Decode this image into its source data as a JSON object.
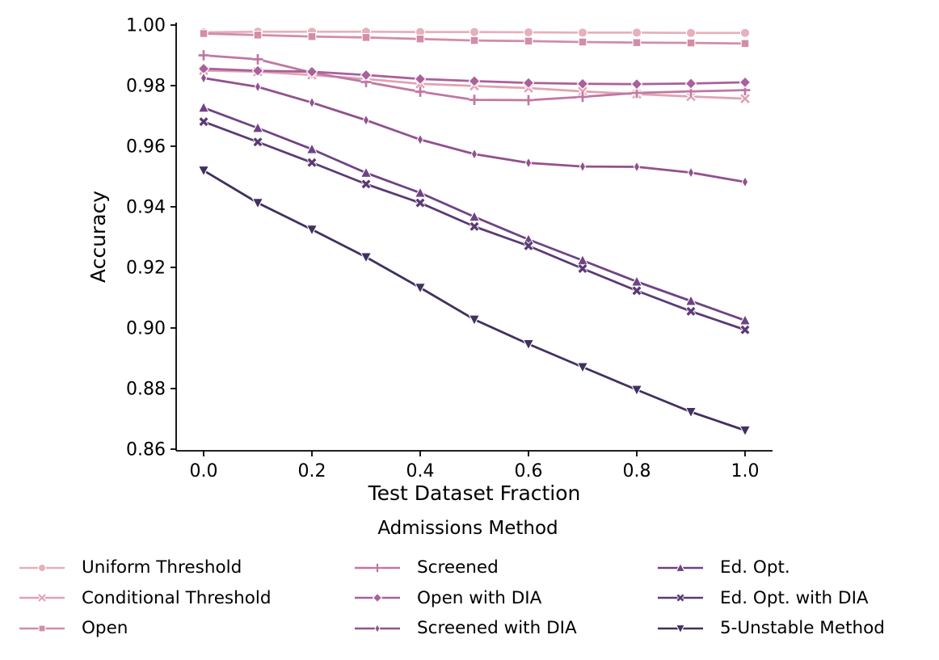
{
  "figure": {
    "background": "#ffffff",
    "axis_color": "#000000"
  },
  "chart_data": {
    "type": "line",
    "title": "",
    "xlabel": "Test Dataset Fraction",
    "ylabel": "Accuracy",
    "legend_title": "Admissions Method",
    "grid": false,
    "legend_position": "below-chart, 3 columns",
    "xlim": [
      -0.05,
      1.05
    ],
    "ylim": [
      0.8595,
      1.0008
    ],
    "x": [
      0.0,
      0.1,
      0.2,
      0.3,
      0.4,
      0.5,
      0.6,
      0.7,
      0.8,
      0.9,
      1.0
    ],
    "xticks": [
      0.0,
      0.2,
      0.4,
      0.6,
      0.8,
      1.0
    ],
    "xtick_labels": [
      "0.0",
      "0.2",
      "0.4",
      "0.6",
      "0.8",
      "1.0"
    ],
    "yticks": [
      0.86,
      0.88,
      0.9,
      0.92,
      0.94,
      0.96,
      0.98,
      1.0
    ],
    "ytick_labels": [
      "0.86",
      "0.88",
      "0.90",
      "0.92",
      "0.94",
      "0.96",
      "0.98",
      "1.00"
    ],
    "series": [
      {
        "name": "Uniform Threshold",
        "marker": "circle",
        "color": "#e5b1bb",
        "values": [
          0.9976,
          0.9978,
          0.9978,
          0.9978,
          0.9977,
          0.9977,
          0.9976,
          0.9975,
          0.9975,
          0.9974,
          0.9974
        ]
      },
      {
        "name": "Conditional Threshold",
        "marker": "x",
        "color": "#dfa3b2",
        "values": [
          0.985,
          0.9846,
          0.9835,
          0.9822,
          0.9806,
          0.9799,
          0.9792,
          0.9781,
          0.9772,
          0.9764,
          0.9757
        ]
      },
      {
        "name": "Open",
        "marker": "square",
        "color": "#d28da7",
        "values": [
          0.9972,
          0.9967,
          0.9962,
          0.9959,
          0.9954,
          0.9949,
          0.9947,
          0.9944,
          0.9942,
          0.9941,
          0.9939
        ]
      },
      {
        "name": "Screened",
        "marker": "plus",
        "color": "#c077a2",
        "values": [
          0.99,
          0.9887,
          0.9843,
          0.9812,
          0.978,
          0.9753,
          0.9752,
          0.9763,
          0.9776,
          0.9781,
          0.9785
        ]
      },
      {
        "name": "Open with DIA",
        "marker": "diamond",
        "color": "#a9609b",
        "values": [
          0.9856,
          0.9849,
          0.9846,
          0.9835,
          0.9822,
          0.9815,
          0.9809,
          0.9806,
          0.9805,
          0.9807,
          0.9811
        ]
      },
      {
        "name": "Screened with DIA",
        "marker": "thin-diamond",
        "color": "#92518f",
        "values": [
          0.9825,
          0.9796,
          0.9744,
          0.9686,
          0.9622,
          0.9574,
          0.9545,
          0.9533,
          0.9532,
          0.9513,
          0.9482
        ]
      },
      {
        "name": "Ed. Opt.",
        "marker": "triangle-up",
        "color": "#6f4383",
        "values": [
          0.9727,
          0.966,
          0.959,
          0.9512,
          0.9446,
          0.9367,
          0.9292,
          0.9223,
          0.9153,
          0.9089,
          0.9025
        ]
      },
      {
        "name": "Ed. Opt. with DIA",
        "marker": "x-filled",
        "color": "#5a3a74",
        "values": [
          0.9681,
          0.9614,
          0.9546,
          0.9475,
          0.9413,
          0.9335,
          0.9271,
          0.9196,
          0.9123,
          0.9055,
          0.8994
        ]
      },
      {
        "name": "5-Unstable Method",
        "marker": "triangle-down",
        "color": "#413060",
        "values": [
          0.952,
          0.9413,
          0.9325,
          0.9234,
          0.9133,
          0.9028,
          0.8947,
          0.8871,
          0.8796,
          0.8723,
          0.8662
        ]
      }
    ],
    "legend_columns": [
      [
        0,
        1,
        2
      ],
      [
        3,
        4,
        5
      ],
      [
        6,
        7,
        8
      ]
    ]
  }
}
